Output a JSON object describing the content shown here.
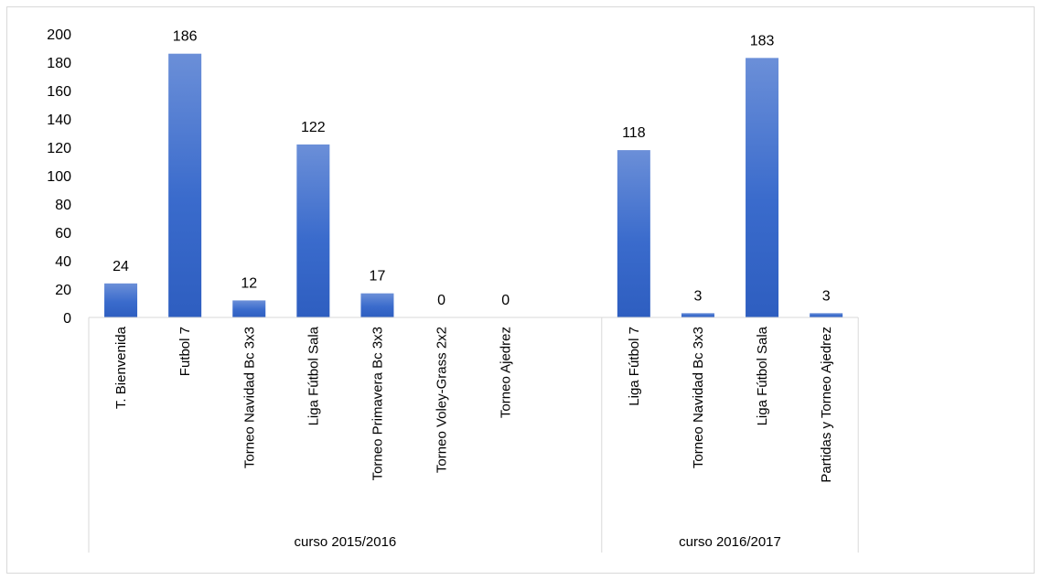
{
  "chart_data": {
    "type": "bar",
    "title": "",
    "xlabel": "",
    "ylabel": "",
    "ylim": [
      0,
      200
    ],
    "yticks": [
      0,
      20,
      40,
      60,
      80,
      100,
      120,
      140,
      160,
      180,
      200
    ],
    "grid": false,
    "legend": "none",
    "bar_color": "#3a6bcc",
    "groups": [
      {
        "label": "curso 2015/2016",
        "categories": [
          "T. Bienvenida",
          "Futbol 7",
          "Torneo Navidad Bc 3x3",
          "Liga Fútbol Sala",
          "Torneo Primavera Bc 3x3",
          "Torneo Voley-Grass 2x2",
          "Torneo Ajedrez"
        ],
        "values": [
          24,
          186,
          12,
          122,
          17,
          0,
          0
        ]
      },
      {
        "label": "curso 2016/2017",
        "categories": [
          "Liga Fútbol 7",
          "Torneo Navidad Bc 3x3",
          "Liga Fútbol Sala",
          "Partidas y Torneo Ajedrez"
        ],
        "values": [
          118,
          3,
          183,
          3
        ]
      }
    ]
  }
}
